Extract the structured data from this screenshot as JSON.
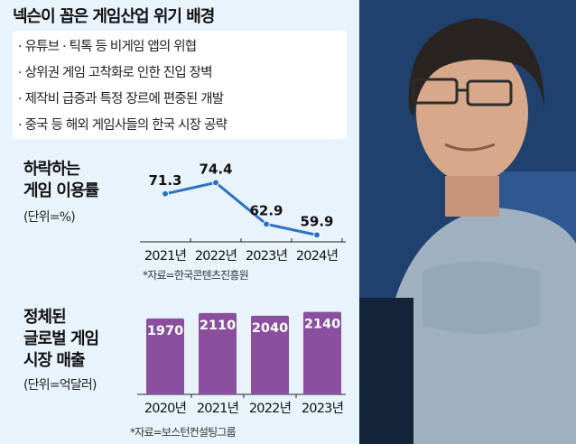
{
  "header": {
    "title": "넥슨이 꼽은 게임산업 위기 배경",
    "reasons": [
      "· 유튜브 · 틱톡 등 비게임 앱의 위협",
      "· 상위권 게임 고착화로 인한 진입 장벽",
      "· 제작비 급증과 특정 장르에 편중된 개발",
      "· 중국 등 해외 게임사들의 한국 시장 공략"
    ]
  },
  "line_section": {
    "title_line1": "하락하는",
    "title_line2": "게임 이용률",
    "unit": "(단위=%)",
    "source": "*자료=한국콘텐츠진흥원"
  },
  "bar_section": {
    "title_line1": "정체된",
    "title_line2": "글로벌 게임",
    "title_line3": "시장 매출",
    "unit": "(단위=억달러)",
    "source": "*자료=보스턴컨설팅그룹"
  },
  "colors": {
    "panel_bg": "#e9f3fb",
    "line": "#2a73c4",
    "bar": "#8a4f9e",
    "axis": "#222222"
  },
  "chart_data": [
    {
      "type": "line",
      "title": "하락하는 게임 이용률",
      "ylabel": "(단위=%)",
      "categories": [
        "2021년",
        "2022년",
        "2023년",
        "2024년"
      ],
      "values": [
        71.3,
        74.4,
        62.9,
        59.9
      ],
      "labels": [
        "71.3",
        "74.4",
        "62.9",
        "59.9"
      ],
      "ylim": [
        55,
        78
      ]
    },
    {
      "type": "bar",
      "title": "정체된 글로벌 게임 시장 매출",
      "ylabel": "(단위=억달러)",
      "categories": [
        "2020년",
        "2021년",
        "2022년",
        "2023년"
      ],
      "values": [
        1970,
        2110,
        2040,
        2140
      ],
      "labels": [
        "1970",
        "2110",
        "2040",
        "2140"
      ],
      "ylim": [
        0,
        2200
      ]
    }
  ]
}
